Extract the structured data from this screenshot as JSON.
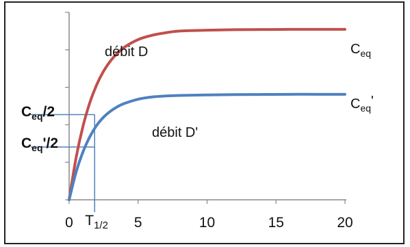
{
  "chart_data": {
    "type": "line",
    "title": "",
    "xlabel": "",
    "ylabel": "",
    "xlim": [
      0,
      20
    ],
    "ylim": [
      0,
      1.1
    ],
    "x_ticks": [
      "0",
      "5",
      "10",
      "15",
      "20"
    ],
    "x": [
      0,
      0.5,
      1,
      1.5,
      2,
      2.5,
      3,
      3.5,
      4,
      5,
      6,
      7,
      8,
      10,
      12,
      14,
      16,
      18,
      20
    ],
    "series": [
      {
        "color": "#c0504d",
        "values": [
          0,
          0.245,
          0.43,
          0.57,
          0.675,
          0.755,
          0.815,
          0.86,
          0.895,
          0.94,
          0.965,
          0.98,
          0.99,
          0.995,
          0.998,
          0.999,
          1.0,
          1.0,
          1.0
        ]
      },
      {
        "color": "#4f81bd",
        "values": [
          0,
          0.161,
          0.28,
          0.37,
          0.437,
          0.485,
          0.52,
          0.546,
          0.565,
          0.59,
          0.603,
          0.609,
          0.612,
          0.615,
          0.617,
          0.618,
          0.619,
          0.619,
          0.619
        ]
      }
    ],
    "annotations": {
      "red_label": "débit D",
      "blue_label": "débit D'",
      "ceq_main": "C",
      "ceq_sub": "eq",
      "ceq_prime_main": "C",
      "ceq_prime_sub": "eq",
      "ceq_prime_mark": "'",
      "half_red_main": "C",
      "half_red_sub": "eq",
      "half_red_tail": "/2",
      "half_blue_main": "C",
      "half_blue_sub": "eq",
      "half_blue_tail": "'/2",
      "t_half_main": "T",
      "t_half_sub": "1/2",
      "t_half_x": 1.85,
      "half_red_y": 0.5,
      "half_blue_y": 0.3095
    },
    "colors": {
      "guide": "#4f81bd",
      "axis": "#888888"
    }
  }
}
